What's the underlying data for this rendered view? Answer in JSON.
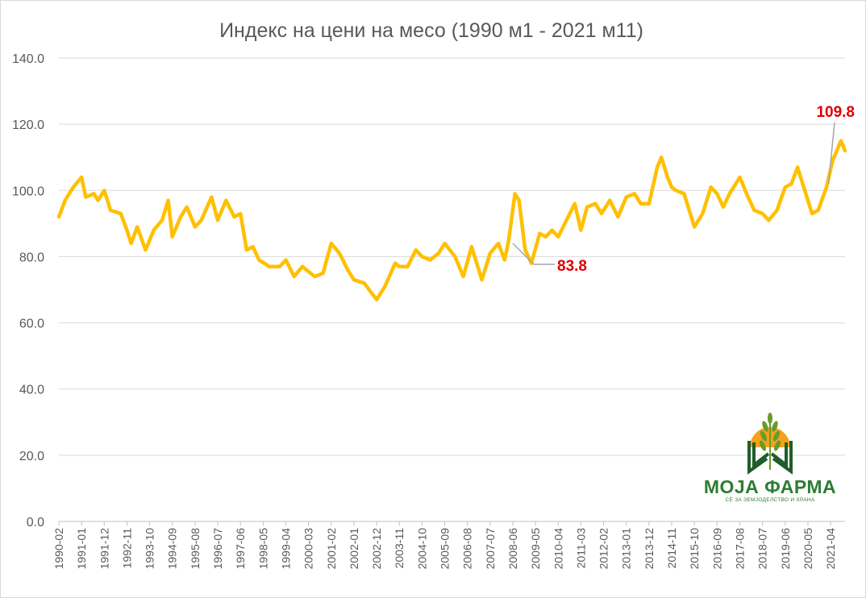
{
  "chart_data": {
    "type": "line",
    "title": "Индекс на цени на месо (1990 м1 - 2021 м11)",
    "xlabel": "",
    "ylabel": "",
    "ylim": [
      0,
      140
    ],
    "yticks": [
      "0.0",
      "20.0",
      "40.0",
      "60.0",
      "80.0",
      "100.0",
      "120.0",
      "140.0"
    ],
    "xticks": [
      "1990-02",
      "1991-01",
      "1991-12",
      "1992-11",
      "1993-10",
      "1994-09",
      "1995-08",
      "1996-07",
      "1997-06",
      "1998-05",
      "1999-04",
      "2000-03",
      "2001-02",
      "2002-01",
      "2002-12",
      "2003-11",
      "2004-10",
      "2005-09",
      "2006-08",
      "2007-07",
      "2008-06",
      "2009-05",
      "2010-04",
      "2011-03",
      "2012-02",
      "2013-01",
      "2013-12",
      "2014-11",
      "2015-10",
      "2016-09",
      "2017-08",
      "2018-07",
      "2019-06",
      "2020-05",
      "2021-04"
    ],
    "grid": true,
    "legend": "none",
    "series": [
      {
        "color": "#FFC000",
        "keypoints": [
          [
            "1990-02",
            92
          ],
          [
            "1990-05",
            97
          ],
          [
            "1990-09",
            101
          ],
          [
            "1991-01",
            104
          ],
          [
            "1991-03",
            98
          ],
          [
            "1991-07",
            99
          ],
          [
            "1991-09",
            97
          ],
          [
            "1991-12",
            100
          ],
          [
            "1992-03",
            94
          ],
          [
            "1992-08",
            93
          ],
          [
            "1992-11",
            88
          ],
          [
            "1993-01",
            84
          ],
          [
            "1993-04",
            89
          ],
          [
            "1993-08",
            82
          ],
          [
            "1993-12",
            88
          ],
          [
            "1994-04",
            91
          ],
          [
            "1994-07",
            97
          ],
          [
            "1994-09",
            86
          ],
          [
            "1995-01",
            92
          ],
          [
            "1995-04",
            95
          ],
          [
            "1995-08",
            89
          ],
          [
            "1995-11",
            91
          ],
          [
            "1996-04",
            98
          ],
          [
            "1996-07",
            91
          ],
          [
            "1996-11",
            97
          ],
          [
            "1997-03",
            92
          ],
          [
            "1997-06",
            93
          ],
          [
            "1997-09",
            82
          ],
          [
            "1997-12",
            83
          ],
          [
            "1998-03",
            79
          ],
          [
            "1998-08",
            77
          ],
          [
            "1999-01",
            77
          ],
          [
            "1999-04",
            79
          ],
          [
            "1999-08",
            74
          ],
          [
            "1999-12",
            77
          ],
          [
            "2000-06",
            74
          ],
          [
            "2000-10",
            75
          ],
          [
            "2001-02",
            84
          ],
          [
            "2001-06",
            81
          ],
          [
            "2001-10",
            76
          ],
          [
            "2002-01",
            73
          ],
          [
            "2002-06",
            72
          ],
          [
            "2002-12",
            67
          ],
          [
            "2003-04",
            71
          ],
          [
            "2003-09",
            78
          ],
          [
            "2003-11",
            77
          ],
          [
            "2004-03",
            77
          ],
          [
            "2004-07",
            82
          ],
          [
            "2004-10",
            80
          ],
          [
            "2005-02",
            79
          ],
          [
            "2005-06",
            81
          ],
          [
            "2005-09",
            84
          ],
          [
            "2006-02",
            80
          ],
          [
            "2006-06",
            74
          ],
          [
            "2006-10",
            83
          ],
          [
            "2007-03",
            73
          ],
          [
            "2007-07",
            81
          ],
          [
            "2007-11",
            84
          ],
          [
            "2008-02",
            79
          ],
          [
            "2008-04",
            85
          ],
          [
            "2008-07",
            99
          ],
          [
            "2008-09",
            97
          ],
          [
            "2008-12",
            82
          ],
          [
            "2009-03",
            78
          ],
          [
            "2009-07",
            87
          ],
          [
            "2009-10",
            86
          ],
          [
            "2010-01",
            88
          ],
          [
            "2010-04",
            86
          ],
          [
            "2010-08",
            91
          ],
          [
            "2010-12",
            96
          ],
          [
            "2011-03",
            88
          ],
          [
            "2011-06",
            95
          ],
          [
            "2011-10",
            96
          ],
          [
            "2012-01",
            93
          ],
          [
            "2012-05",
            97
          ],
          [
            "2012-09",
            92
          ],
          [
            "2013-01",
            98
          ],
          [
            "2013-05",
            99
          ],
          [
            "2013-08",
            96
          ],
          [
            "2013-12",
            96
          ],
          [
            "2014-04",
            107
          ],
          [
            "2014-06",
            110
          ],
          [
            "2014-09",
            104
          ],
          [
            "2014-11",
            101
          ],
          [
            "2015-01",
            100
          ],
          [
            "2015-05",
            99
          ],
          [
            "2015-10",
            89
          ],
          [
            "2016-02",
            93
          ],
          [
            "2016-06",
            101
          ],
          [
            "2016-09",
            99
          ],
          [
            "2016-12",
            95
          ],
          [
            "2017-03",
            99
          ],
          [
            "2017-08",
            104
          ],
          [
            "2017-12",
            98
          ],
          [
            "2018-03",
            94
          ],
          [
            "2018-07",
            93
          ],
          [
            "2018-10",
            91
          ],
          [
            "2019-02",
            94
          ],
          [
            "2019-06",
            101
          ],
          [
            "2019-09",
            102
          ],
          [
            "2019-12",
            107
          ],
          [
            "2020-03",
            101
          ],
          [
            "2020-07",
            93
          ],
          [
            "2020-10",
            94
          ],
          [
            "2021-02",
            101
          ],
          [
            "2021-05",
            109
          ],
          [
            "2021-07",
            112
          ],
          [
            "2021-09",
            115
          ],
          [
            "2021-11",
            112
          ]
        ]
      }
    ],
    "annotations": [
      {
        "text": "109.8",
        "anchor": [
          "2021-03",
          102
        ]
      },
      {
        "text": "83.8",
        "anchor": [
          "2008-06",
          84
        ]
      }
    ]
  },
  "logo": {
    "name": "МОЈА ФАРМА",
    "tagline": "СЀ ЗА ЗЕМЈОДЕЛСТВО И ХРАНА"
  }
}
